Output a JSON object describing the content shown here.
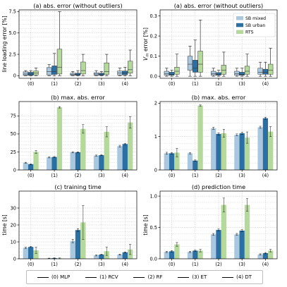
{
  "colors": {
    "sb_mixed": "#a9c8e0",
    "sb_urban": "#2b6fa3",
    "rts": "#b5d99c"
  },
  "chart_data": [
    {
      "id": "a_left",
      "type": "box",
      "title": "(a) abs. error (without outliers)",
      "ylabel": "line loading error [%]",
      "ylim": [
        -0.3,
        7.7
      ],
      "yticks": [
        0,
        2.5,
        5,
        7.5
      ],
      "ytick_labels": [
        "0",
        "2.5",
        "5.0",
        "7.5"
      ],
      "categories": [
        "(0)",
        "(1)",
        "(2)",
        "(3)",
        "(4)"
      ],
      "series": [
        {
          "name": "SB mixed",
          "boxes": [
            {
              "w": [
                0,
                0.6
              ],
              "q": [
                0.05,
                0.45
              ],
              "m": 0.2
            },
            {
              "w": [
                0,
                1.3
              ],
              "q": [
                0.1,
                0.95
              ],
              "m": 0.5
            },
            {
              "w": [
                0,
                0.5
              ],
              "q": [
                0.05,
                0.3
              ],
              "m": 0.15
            },
            {
              "w": [
                0,
                0.6
              ],
              "q": [
                0.05,
                0.35
              ],
              "m": 0.2
            },
            {
              "w": [
                0,
                0.9
              ],
              "q": [
                0.08,
                0.55
              ],
              "m": 0.3
            }
          ]
        },
        {
          "name": "SB urban",
          "boxes": [
            {
              "w": [
                0,
                0.6
              ],
              "q": [
                0.05,
                0.4
              ],
              "m": 0.2
            },
            {
              "w": [
                0,
                2.6
              ],
              "q": [
                0.15,
                1.15
              ],
              "m": 0.5
            },
            {
              "w": [
                0,
                0.6
              ],
              "q": [
                0.05,
                0.3
              ],
              "m": 0.15
            },
            {
              "w": [
                0,
                0.5
              ],
              "q": [
                0.05,
                0.3
              ],
              "m": 0.15
            },
            {
              "w": [
                0,
                1.0
              ],
              "q": [
                0.1,
                0.55
              ],
              "m": 0.3
            }
          ]
        },
        {
          "name": "RTS",
          "boxes": [
            {
              "w": [
                0,
                0.9
              ],
              "q": [
                0.1,
                0.55
              ],
              "m": 0.3
            },
            {
              "w": [
                0,
                7.5
              ],
              "q": [
                0.2,
                3.1
              ],
              "m": 1.0
            },
            {
              "w": [
                0,
                2.5
              ],
              "q": [
                0.2,
                1.6
              ],
              "m": 0.6
            },
            {
              "w": [
                0,
                2.5
              ],
              "q": [
                0.15,
                1.5
              ],
              "m": 0.5
            },
            {
              "w": [
                0,
                3.0
              ],
              "q": [
                0.3,
                1.7
              ],
              "m": 0.7
            }
          ]
        }
      ]
    },
    {
      "id": "a_right",
      "type": "box",
      "title": "(a) abs. error (without outliers)",
      "ylabel": "V_m error [%]",
      "ylim": [
        -0.01,
        0.33
      ],
      "yticks": [
        0,
        0.1,
        0.2,
        0.3
      ],
      "ytick_labels": [
        "0.0",
        "0.1",
        "0.2",
        "0.3"
      ],
      "categories": [
        "(0)",
        "(1)",
        "(2)",
        "(3)",
        "(4)"
      ],
      "legend": {
        "position": "top-right",
        "entries": [
          "SB mixed",
          "SB urban",
          "RTS"
        ]
      },
      "series": [
        {
          "name": "SB mixed",
          "boxes": [
            {
              "w": [
                0,
                0.04
              ],
              "q": [
                0.005,
                0.025
              ],
              "m": 0.012
            },
            {
              "w": [
                0,
                0.15
              ],
              "q": [
                0.03,
                0.1
              ],
              "m": 0.06
            },
            {
              "w": [
                0,
                0.04
              ],
              "q": [
                0.005,
                0.025
              ],
              "m": 0.012
            },
            {
              "w": [
                0,
                0.04
              ],
              "q": [
                0.005,
                0.025
              ],
              "m": 0.012
            },
            {
              "w": [
                0,
                0.07
              ],
              "q": [
                0.01,
                0.04
              ],
              "m": 0.02
            }
          ]
        },
        {
          "name": "SB urban",
          "boxes": [
            {
              "w": [
                0,
                0.03
              ],
              "q": [
                0.005,
                0.02
              ],
              "m": 0.01
            },
            {
              "w": [
                0,
                0.18
              ],
              "q": [
                0.02,
                0.08
              ],
              "m": 0.04
            },
            {
              "w": [
                0,
                0.03
              ],
              "q": [
                0.005,
                0.018
              ],
              "m": 0.01
            },
            {
              "w": [
                0,
                0.04
              ],
              "q": [
                0.005,
                0.02
              ],
              "m": 0.01
            },
            {
              "w": [
                0,
                0.07
              ],
              "q": [
                0.01,
                0.035
              ],
              "m": 0.02
            }
          ]
        },
        {
          "name": "RTS",
          "boxes": [
            {
              "w": [
                0,
                0.11
              ],
              "q": [
                0.01,
                0.045
              ],
              "m": 0.025
            },
            {
              "w": [
                0,
                0.28
              ],
              "q": [
                0.02,
                0.125
              ],
              "m": 0.06
            },
            {
              "w": [
                0,
                0.12
              ],
              "q": [
                0.01,
                0.055
              ],
              "m": 0.03
            },
            {
              "w": [
                0,
                0.11
              ],
              "q": [
                0.01,
                0.05
              ],
              "m": 0.025
            },
            {
              "w": [
                0,
                0.14
              ],
              "q": [
                0.01,
                0.06
              ],
              "m": 0.03
            }
          ]
        }
      ]
    },
    {
      "id": "b_left",
      "type": "bar",
      "title": "(b) max. abs. error",
      "ylabel": "",
      "ylim": [
        0,
        95
      ],
      "yticks": [
        0,
        25,
        50,
        75
      ],
      "ytick_labels": [
        "0",
        "25",
        "50",
        "75"
      ],
      "categories": [
        "(0)",
        "(1)",
        "(2)",
        "(3)",
        "(4)"
      ],
      "series": [
        {
          "name": "SB mixed",
          "values": [
            10,
            17.5,
            24.5,
            20,
            33
          ],
          "err": [
            0.6,
            0.8,
            0.8,
            0.7,
            1.2
          ]
        },
        {
          "name": "SB urban",
          "values": [
            8,
            18,
            24.5,
            20.5,
            36
          ],
          "err": [
            0.5,
            0.6,
            0.6,
            0.6,
            0.8
          ]
        },
        {
          "name": "RTS",
          "values": [
            25,
            87,
            57,
            53,
            66
          ],
          "err": [
            2,
            1,
            6,
            7,
            8
          ]
        }
      ]
    },
    {
      "id": "b_right",
      "type": "bar",
      "title": "(b) max. abs. error",
      "ylabel": "",
      "ylim": [
        0,
        2.05
      ],
      "yticks": [
        0,
        1,
        2
      ],
      "ytick_labels": [
        "0",
        "1",
        "2"
      ],
      "categories": [
        "(0)",
        "(1)",
        "(2)",
        "(3)",
        "(4)"
      ],
      "series": [
        {
          "name": "SB mixed",
          "values": [
            0.5,
            0.5,
            1.25,
            1.05,
            1.28
          ],
          "err": [
            0.03,
            0.02,
            0.03,
            0.03,
            0.03
          ]
        },
        {
          "name": "SB urban",
          "values": [
            0.5,
            0.28,
            1.08,
            1.1,
            1.55
          ],
          "err": [
            0.02,
            0.02,
            0.03,
            0.03,
            0.03
          ]
        },
        {
          "name": "RTS",
          "values": [
            0.52,
            1.93,
            1.1,
            0.97,
            1.15
          ],
          "err": [
            0.13,
            0.02,
            0.12,
            0.17,
            0.15
          ]
        }
      ]
    },
    {
      "id": "c",
      "type": "bar",
      "title": "(c) training time",
      "ylabel": "time [s]",
      "ylim": [
        0,
        40
      ],
      "yticks": [
        0,
        10,
        20,
        30
      ],
      "ytick_labels": [
        "0",
        "10",
        "20",
        "30"
      ],
      "categories": [
        "(0)",
        "(1)",
        "(2)",
        "(3)",
        "(4)"
      ],
      "series": [
        {
          "name": "SB mixed",
          "values": [
            6.5,
            0.3,
            10.5,
            2.0,
            2.5
          ],
          "err": [
            0.4,
            0.1,
            1.0,
            0.3,
            0.3
          ]
        },
        {
          "name": "SB urban",
          "values": [
            7.0,
            0.4,
            17.0,
            2.5,
            3.8
          ],
          "err": [
            0.3,
            0.1,
            0.8,
            0.2,
            0.3
          ]
        },
        {
          "name": "RTS",
          "values": [
            5.0,
            0.3,
            21.5,
            4.5,
            5.5
          ],
          "err": [
            1.8,
            0.2,
            10,
            2.5,
            3
          ]
        }
      ]
    },
    {
      "id": "d",
      "type": "bar",
      "title": "(d) prediction time",
      "ylabel": "time [s]",
      "ylim": [
        0,
        1.08
      ],
      "yticks": [
        0,
        0.5,
        1.0
      ],
      "ytick_labels": [
        "0.0",
        "0.5",
        "1.0"
      ],
      "categories": [
        "(0)",
        "(1)",
        "(2)",
        "(3)",
        "(4)"
      ],
      "series": [
        {
          "name": "SB mixed",
          "values": [
            0.11,
            0.11,
            0.39,
            0.39,
            0.07
          ],
          "err": [
            0.01,
            0.01,
            0.015,
            0.015,
            0.01
          ]
        },
        {
          "name": "SB urban",
          "values": [
            0.12,
            0.13,
            0.46,
            0.45,
            0.09
          ],
          "err": [
            0.01,
            0.01,
            0.015,
            0.015,
            0.01
          ]
        },
        {
          "name": "RTS",
          "values": [
            0.23,
            0.13,
            0.86,
            0.86,
            0.13
          ],
          "err": [
            0.03,
            0.02,
            0.11,
            0.1,
            0.02
          ]
        }
      ]
    }
  ],
  "bottom_legend": {
    "entries": [
      "(0) MLP",
      "(1) RCV",
      "(2) RF",
      "(3) ET",
      "(4) DT"
    ]
  }
}
